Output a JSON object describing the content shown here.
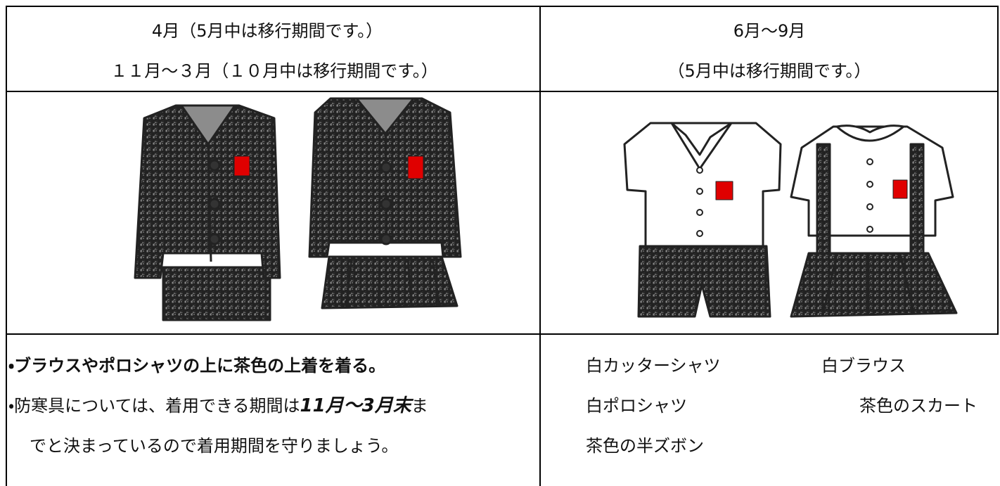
{
  "header": {
    "winter": [
      "4月（5月中は移行期間です。）",
      "１１月～３月（１０月中は移行期間です。）"
    ],
    "summer": [
      "6月～9月",
      "（5月中は移行期間です。）"
    ]
  },
  "notes": {
    "winter": {
      "line1": "・ブラウスやポロシャツの上に茶色の上着を着る。",
      "line2": [
        "・防寒具については、着用できる期間は",
        "11月～3月末",
        "ま"
      ],
      "line3": "でと決まっているので着用期間を守りましょう。"
    },
    "summer": [
      "白カッターシャツ",
      "白ブラウス",
      "白ポロシャツ",
      "茶色のスカート",
      "茶色の半ズボン"
    ]
  }
}
